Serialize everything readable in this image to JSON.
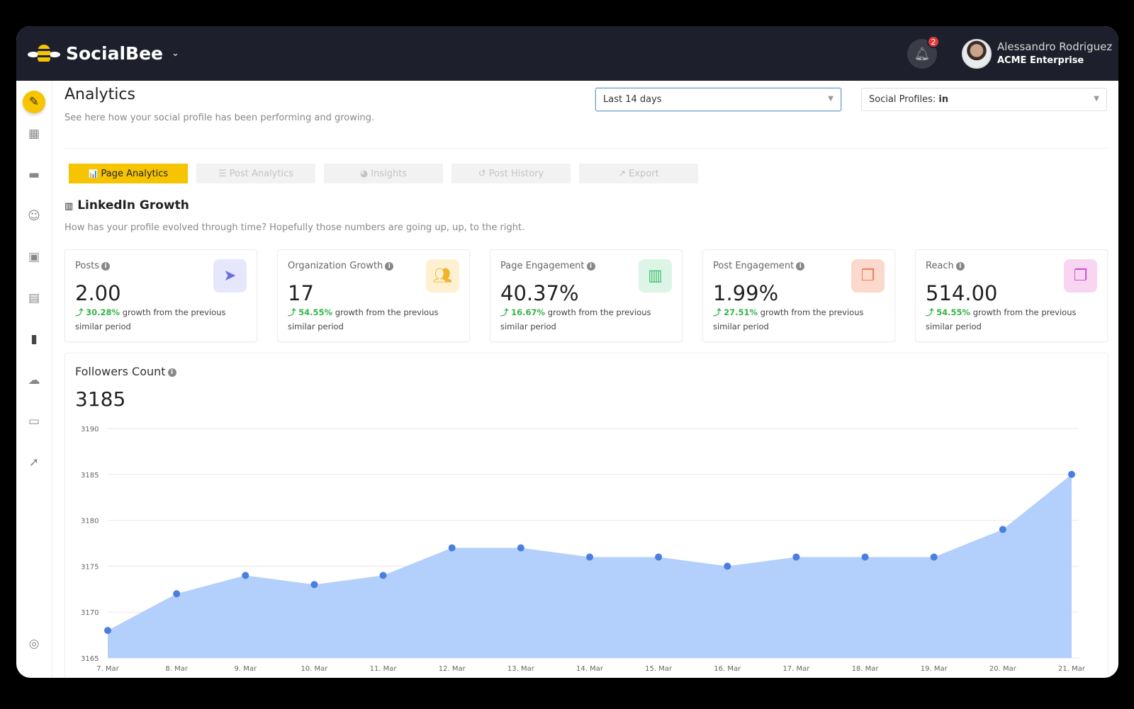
{
  "header": {
    "brand": "SocialBee",
    "notifications": "2",
    "user_name": "Alessandro Rodriguez",
    "user_company": "ACME Enterprise"
  },
  "page": {
    "title": "Analytics",
    "subtitle": "See here how your social profile has been performing and growing.",
    "date_range": "Last 14 days",
    "profiles_label": "Social Profiles:",
    "profiles_value": "in"
  },
  "sidebar": {
    "items": [
      "compose-icon",
      "dashboard-icon",
      "folder-icon",
      "robot-icon",
      "calendar-icon",
      "calendar-alt-icon",
      "analytics-icon",
      "cloud-icon",
      "chat-icon",
      "rocket-icon",
      "help-icon"
    ],
    "active": "compose-icon"
  },
  "tabs": [
    {
      "label": "Page Analytics",
      "icon": "📊",
      "active": true
    },
    {
      "label": "Post Analytics",
      "icon": "☰"
    },
    {
      "label": "Insights",
      "icon": "◕"
    },
    {
      "label": "Post History",
      "icon": "↺"
    },
    {
      "label": "Export",
      "icon": "↗"
    }
  ],
  "section": {
    "title": "LinkedIn Growth",
    "subtitle": "How has your profile evolved through time? Hopefully those numbers are going up, up, to the right."
  },
  "growth_suffix": "growth from the previous similar period",
  "cards": [
    {
      "label": "Posts",
      "value": "2.00",
      "growth": "30.28%",
      "icon": "paper-plane-icon",
      "color": "#6b6fe6",
      "bg": "#e6e7fb"
    },
    {
      "label": "Organization Growth",
      "value": "17",
      "growth": "54.55%",
      "icon": "users-icon",
      "color": "#f0b42a",
      "bg": "#fdf1d2"
    },
    {
      "label": "Page Engagement",
      "value": "40.37%",
      "growth": "16.67%",
      "icon": "bar-chart-icon",
      "color": "#3fbf6e",
      "bg": "#dcf5e6"
    },
    {
      "label": "Post Engagement",
      "value": "1.99%",
      "growth": "27.51%",
      "icon": "chat-bubbles-icon",
      "color": "#ec7a55",
      "bg": "#fbd9cd"
    },
    {
      "label": "Reach",
      "value": "514.00",
      "growth": "54.55%",
      "icon": "chat-bubbles-icon",
      "color": "#d04ad0",
      "bg": "#f8d6f2"
    }
  ],
  "followers": {
    "title": "Followers Count",
    "value": "3185"
  },
  "chart_data": {
    "type": "area",
    "ylim": [
      3165,
      3190
    ],
    "yticks": [
      3165,
      3170,
      3175,
      3180,
      3185,
      3190
    ],
    "grid": true,
    "color": "#4a7fe0",
    "fill": "#b3cffb",
    "categories": [
      "7. Mar",
      "8. Mar",
      "9. Mar",
      "10. Mar",
      "11. Mar",
      "12. Mar",
      "13. Mar",
      "14. Mar",
      "15. Mar",
      "16. Mar",
      "17. Mar",
      "18. Mar",
      "19. Mar",
      "20. Mar",
      "21. Mar"
    ],
    "values": [
      3168,
      3172,
      3174,
      3173,
      3174,
      3177,
      3177,
      3176,
      3176,
      3175,
      3176,
      3176,
      3176,
      3179,
      3185
    ]
  }
}
